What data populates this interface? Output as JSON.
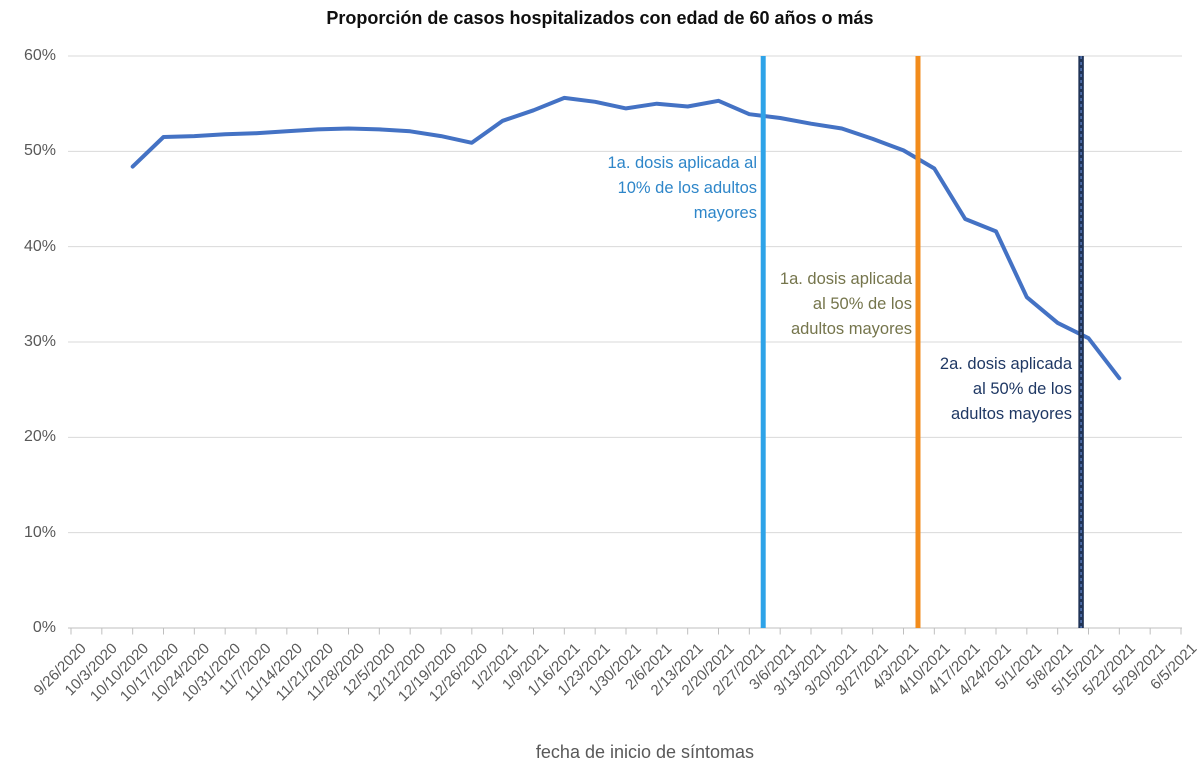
{
  "chart_data": {
    "type": "line",
    "title": "Proporción de casos hospitalizados con edad de 60 años o más",
    "xlabel": "fecha de inicio de síntomas",
    "ylabel": "",
    "ylim": [
      0,
      60
    ],
    "grid": "horizontal",
    "legend": "none",
    "axis_style": "categories on tick marks, x labels rotated 45°",
    "yticks": [
      {
        "value": 0,
        "label": "0%"
      },
      {
        "value": 10,
        "label": "10%"
      },
      {
        "value": 20,
        "label": "20%"
      },
      {
        "value": 30,
        "label": "30%"
      },
      {
        "value": 40,
        "label": "40%"
      },
      {
        "value": 50,
        "label": "50%"
      },
      {
        "value": 60,
        "label": "60%"
      }
    ],
    "categories": [
      "9/26/2020",
      "10/3/2020",
      "10/10/2020",
      "10/17/2020",
      "10/24/2020",
      "10/31/2020",
      "11/7/2020",
      "11/14/2020",
      "11/21/2020",
      "11/28/2020",
      "12/5/2020",
      "12/12/2020",
      "12/19/2020",
      "12/26/2020",
      "1/2/2021",
      "1/9/2021",
      "1/16/2021",
      "1/23/2021",
      "1/30/2021",
      "2/6/2021",
      "2/13/2021",
      "2/20/2021",
      "2/27/2021",
      "3/6/2021",
      "3/13/2021",
      "3/20/2021",
      "3/27/2021",
      "4/3/2021",
      "4/10/2021",
      "4/17/2021",
      "4/24/2021",
      "5/1/2021",
      "5/8/2021",
      "5/15/2021",
      "5/22/2021",
      "5/29/2021",
      "6/5/2021"
    ],
    "series": [
      {
        "name": "proporcion-casos-hospitalizados-60-o-mas",
        "color": "#4472C4",
        "line_width": 4,
        "points": [
          [
            "10/10/2020",
            48.4
          ],
          [
            "10/17/2020",
            51.5
          ],
          [
            "10/24/2020",
            51.6
          ],
          [
            "10/31/2020",
            51.8
          ],
          [
            "11/7/2020",
            51.9
          ],
          [
            "11/14/2020",
            52.1
          ],
          [
            "11/21/2020",
            52.3
          ],
          [
            "11/28/2020",
            52.4
          ],
          [
            "12/5/2020",
            52.3
          ],
          [
            "12/12/2020",
            52.1
          ],
          [
            "12/19/2020",
            51.6
          ],
          [
            "12/26/2020",
            50.9
          ],
          [
            "1/2/2021",
            53.2
          ],
          [
            "1/9/2021",
            54.3
          ],
          [
            "1/16/2021",
            55.6
          ],
          [
            "1/23/2021",
            55.2
          ],
          [
            "1/30/2021",
            54.5
          ],
          [
            "2/6/2021",
            55.0
          ],
          [
            "2/13/2021",
            54.7
          ],
          [
            "2/20/2021",
            55.3
          ],
          [
            "2/27/2021",
            53.9
          ],
          [
            "3/6/2021",
            53.5
          ],
          [
            "3/13/2021",
            52.9
          ],
          [
            "3/20/2021",
            52.4
          ],
          [
            "3/27/2021",
            51.3
          ],
          [
            "4/3/2021",
            50.1
          ],
          [
            "4/10/2021",
            48.2
          ],
          [
            "4/17/2021",
            42.9
          ],
          [
            "4/24/2021",
            41.6
          ],
          [
            "5/1/2021",
            34.7
          ],
          [
            "5/8/2021",
            32.0
          ],
          [
            "5/15/2021",
            30.4
          ],
          [
            "5/22/2021",
            26.2
          ]
        ]
      }
    ],
    "vlines": [
      {
        "name": "primera-dosis-10pct-adultos-mayores",
        "color": "#2EA3E8",
        "style": "solid",
        "position_units": 22.45,
        "between_categories": [
          "2/27/2021",
          "3/6/2021"
        ],
        "label": "1a. dosis aplicada al\n10% de los adultos\nmayores",
        "label_color": "#2E86C9"
      },
      {
        "name": "primera-dosis-50pct-adultos-mayores",
        "color": "#F28C1C",
        "style": "solid",
        "position_units": 27.47,
        "between_categories": [
          "4/3/2021",
          "4/10/2021"
        ],
        "label": "1a. dosis aplicada\nal 50% de los\nadultos mayores",
        "label_color": "#75754C"
      },
      {
        "name": "segunda-dosis-50pct-adultos-mayores",
        "color": "#203457",
        "style": "solid-with-dotted-core",
        "position_units": 32.76,
        "between_categories": [
          "5/8/2021",
          "5/15/2021"
        ],
        "label": "2a. dosis aplicada\nal 50% de los\nadultos mayores",
        "label_color": "#1F3864"
      }
    ]
  }
}
